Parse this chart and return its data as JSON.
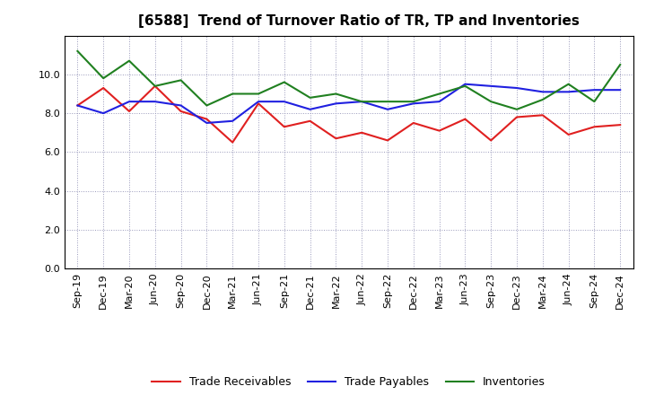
{
  "title": "[6588]  Trend of Turnover Ratio of TR, TP and Inventories",
  "x_labels": [
    "Sep-19",
    "Dec-19",
    "Mar-20",
    "Jun-20",
    "Sep-20",
    "Dec-20",
    "Mar-21",
    "Jun-21",
    "Sep-21",
    "Dec-21",
    "Mar-22",
    "Jun-22",
    "Sep-22",
    "Dec-22",
    "Mar-23",
    "Jun-23",
    "Sep-23",
    "Dec-23",
    "Mar-24",
    "Jun-24",
    "Sep-24",
    "Dec-24"
  ],
  "trade_receivables": [
    8.4,
    9.3,
    8.1,
    9.4,
    8.1,
    7.7,
    6.5,
    8.5,
    7.3,
    7.6,
    6.7,
    7.0,
    6.6,
    7.5,
    7.1,
    7.7,
    6.6,
    7.8,
    7.9,
    6.9,
    7.3,
    7.4
  ],
  "trade_payables": [
    8.4,
    8.0,
    8.6,
    8.6,
    8.4,
    7.5,
    7.6,
    8.6,
    8.6,
    8.2,
    8.5,
    8.6,
    8.2,
    8.5,
    8.6,
    9.5,
    9.4,
    9.3,
    9.1,
    9.1,
    9.2,
    9.2
  ],
  "inventories": [
    11.2,
    9.8,
    10.7,
    9.4,
    9.7,
    8.4,
    9.0,
    9.0,
    9.6,
    8.8,
    9.0,
    8.6,
    8.6,
    8.6,
    9.0,
    9.4,
    8.6,
    8.2,
    8.7,
    9.5,
    8.6,
    10.5
  ],
  "tr_color": "#e02020",
  "tp_color": "#2020e0",
  "inv_color": "#208020",
  "ylim": [
    0.0,
    12.0
  ],
  "yticks": [
    0.0,
    2.0,
    4.0,
    6.0,
    8.0,
    10.0
  ],
  "legend_labels": [
    "Trade Receivables",
    "Trade Payables",
    "Inventories"
  ],
  "background_color": "#ffffff",
  "grid_color": "#9999bb",
  "title_fontsize": 11,
  "axis_fontsize": 8,
  "legend_fontsize": 9
}
